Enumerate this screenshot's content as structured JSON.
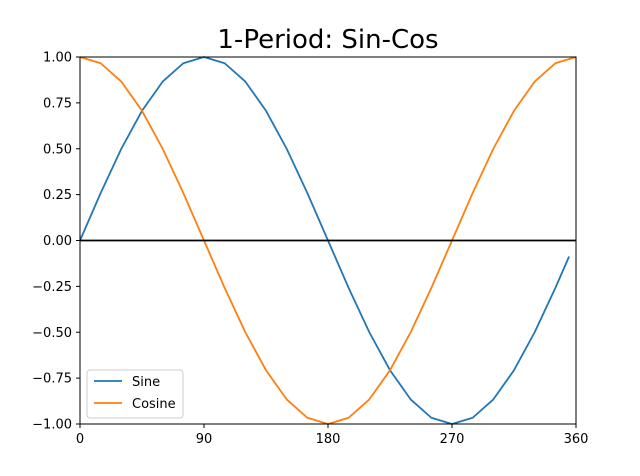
{
  "chart_data": {
    "type": "line",
    "title": "1-Period: Sin-Cos",
    "xlabel": "",
    "ylabel": "",
    "xlim": [
      0,
      360
    ],
    "ylim": [
      -1.0,
      1.0
    ],
    "x_ticks": [
      0,
      90,
      180,
      270,
      360
    ],
    "x_tick_labels": [
      "0",
      "90",
      "180",
      "270",
      "360"
    ],
    "y_ticks": [
      1.0,
      0.75,
      0.5,
      0.25,
      0.0,
      -0.25,
      -0.5,
      -0.75,
      -1.0
    ],
    "y_tick_labels": [
      "1.00",
      "0.75",
      "0.50",
      "0.25",
      "0.00",
      "−0.25",
      "−0.50",
      "−0.75",
      "−1.00"
    ],
    "grid": false,
    "legend_position": "lower-left",
    "hline": {
      "y": 0.0,
      "color": "#000000"
    },
    "series": [
      {
        "name": "Sine",
        "color": "#1f77b4",
        "x": [
          0,
          15,
          30,
          45,
          60,
          75,
          90,
          105,
          120,
          135,
          150,
          165,
          180,
          195,
          210,
          225,
          240,
          255,
          270,
          285,
          300,
          315,
          330,
          345,
          355
        ],
        "values": [
          0.0,
          0.259,
          0.5,
          0.707,
          0.866,
          0.966,
          1.0,
          0.966,
          0.866,
          0.707,
          0.5,
          0.259,
          0.0,
          -0.259,
          -0.5,
          -0.707,
          -0.866,
          -0.966,
          -1.0,
          -0.966,
          -0.866,
          -0.707,
          -0.5,
          -0.259,
          -0.087
        ]
      },
      {
        "name": "Cosine",
        "color": "#ff7f0e",
        "x": [
          0,
          15,
          30,
          45,
          60,
          75,
          90,
          105,
          120,
          135,
          150,
          165,
          180,
          195,
          210,
          225,
          240,
          255,
          270,
          285,
          300,
          315,
          330,
          345,
          360
        ],
        "values": [
          1.0,
          0.966,
          0.866,
          0.707,
          0.5,
          0.259,
          0.0,
          -0.259,
          -0.5,
          -0.707,
          -0.866,
          -0.966,
          -1.0,
          -0.966,
          -0.866,
          -0.707,
          -0.5,
          -0.259,
          0.0,
          0.259,
          0.5,
          0.707,
          0.866,
          0.966,
          1.0
        ]
      }
    ]
  }
}
